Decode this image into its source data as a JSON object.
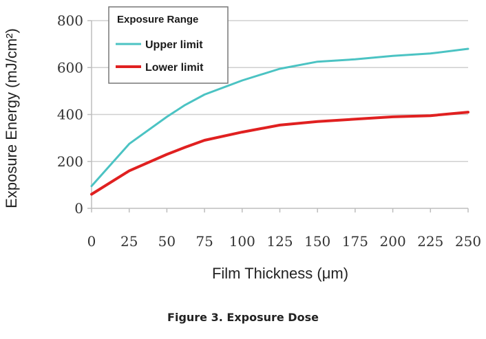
{
  "caption": "Figure 3. Exposure Dose",
  "chart_data": {
    "type": "line",
    "xlabel": "Film Thickness (μm)",
    "ylabel": "Exposure Energy (mJ/cm²)",
    "xlim": [
      0,
      250
    ],
    "ylim": [
      0,
      800
    ],
    "xticks": [
      0,
      25,
      50,
      75,
      100,
      125,
      150,
      175,
      200,
      225,
      250
    ],
    "yticks": [
      0,
      200,
      400,
      600,
      800
    ],
    "grid": "horizontal",
    "legend": {
      "title": "Exposure Range",
      "placement": "top-left"
    },
    "x": [
      0,
      25,
      50,
      62,
      75,
      100,
      125,
      150,
      175,
      200,
      225,
      250
    ],
    "series": [
      {
        "name": "Upper limit",
        "color": "#4bc3c3",
        "values": [
          95,
          275,
          390,
          440,
          485,
          545,
          595,
          625,
          635,
          650,
          660,
          680
        ]
      },
      {
        "name": "Lower limit",
        "color": "#e02020",
        "values": [
          60,
          160,
          230,
          260,
          290,
          325,
          355,
          370,
          380,
          390,
          395,
          410
        ]
      }
    ]
  }
}
